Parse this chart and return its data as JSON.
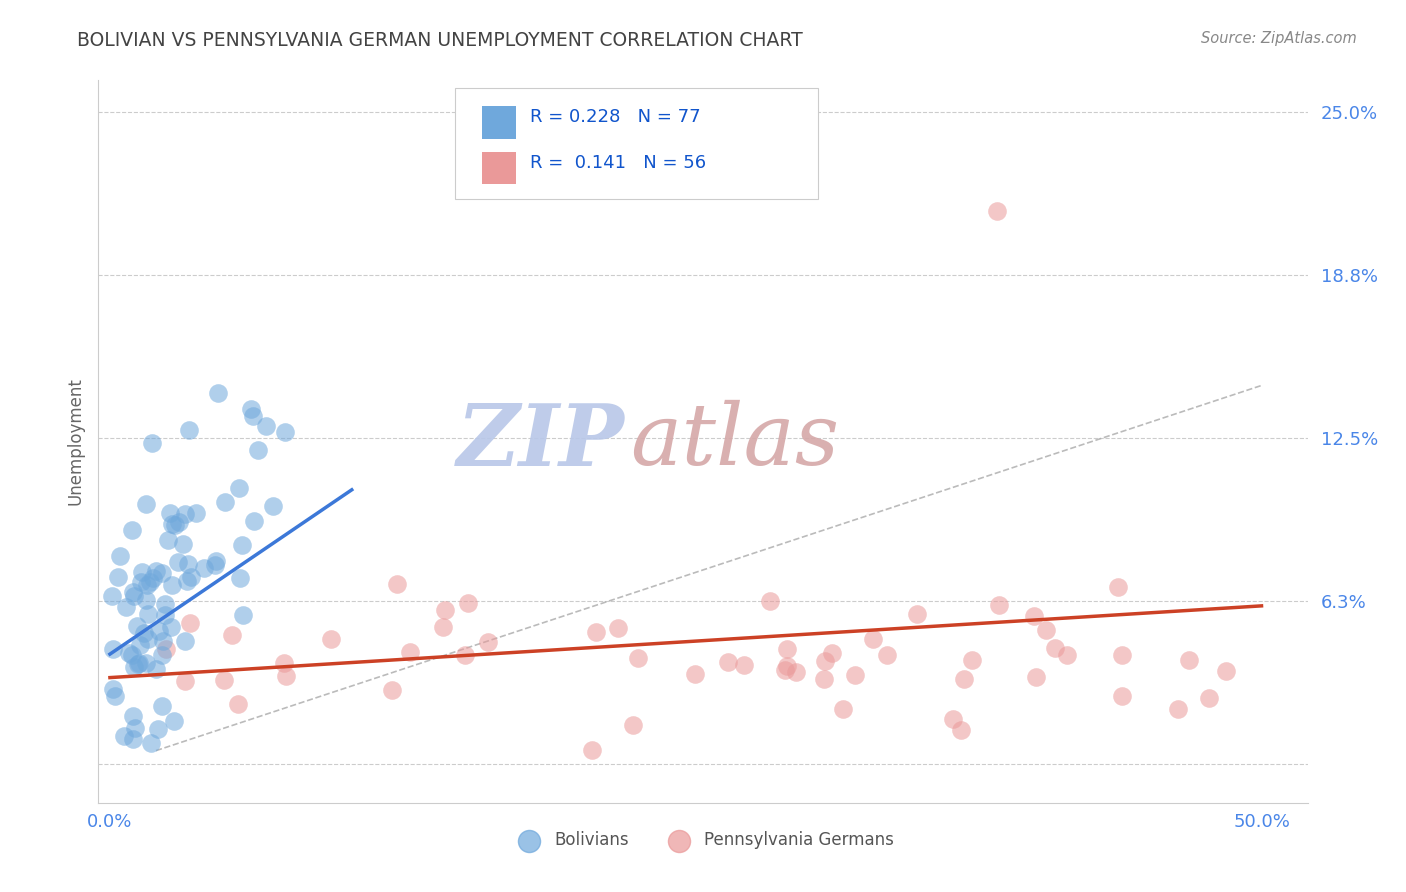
{
  "title": "BOLIVIAN VS PENNSYLVANIA GERMAN UNEMPLOYMENT CORRELATION CHART",
  "source": "Source: ZipAtlas.com",
  "ylabel": "Unemployment",
  "xlim": [
    -0.005,
    0.52
  ],
  "ylim": [
    -0.015,
    0.262
  ],
  "ytick_vals": [
    0.0,
    0.0625,
    0.125,
    0.1875,
    0.25
  ],
  "ytick_labels": [
    "",
    "6.3%",
    "12.5%",
    "18.8%",
    "25.0%"
  ],
  "xtick_vals": [
    0.0,
    0.5
  ],
  "xtick_labels": [
    "0.0%",
    "50.0%"
  ],
  "r_bolivian": "0.228",
  "n_bolivian": "77",
  "r_pa_german": "0.141",
  "n_pa_german": "56",
  "blue_dot_color": "#6fa8dc",
  "pink_dot_color": "#ea9999",
  "blue_line_color": "#3c78d8",
  "pink_line_color": "#cc4125",
  "grid_color": "#cccccc",
  "title_color": "#434343",
  "axis_label_color": "#666666",
  "tick_label_color": "#4a86e8",
  "legend_text_color": "#1155cc",
  "watermark_zip_color": "#b8c7e8",
  "watermark_atlas_color": "#d5a8a8",
  "background_color": "#ffffff",
  "diag_line_color": "#aaaaaa",
  "legend_border_color": "#cccccc"
}
